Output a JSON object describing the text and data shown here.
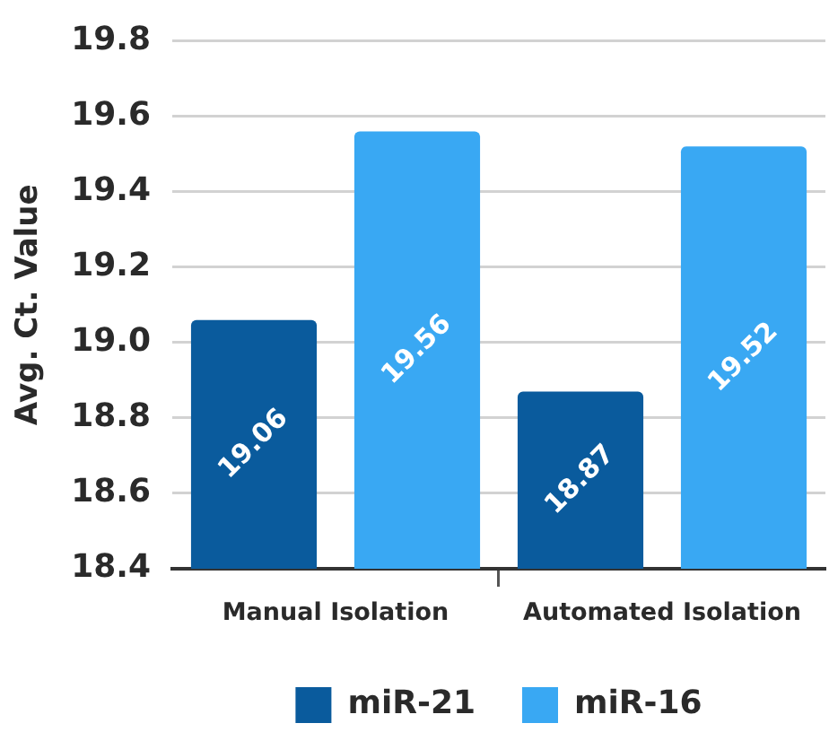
{
  "chart_data": {
    "type": "bar",
    "ylabel": "Avg. Ct. Value",
    "categories": [
      "Manual Isolation",
      "Automated Isolation"
    ],
    "series": [
      {
        "name": "miR-21",
        "color": "#0a5b9d",
        "values": [
          19.06,
          18.87
        ]
      },
      {
        "name": "miR-16",
        "color": "#39a8f3",
        "values": [
          19.56,
          19.52
        ]
      }
    ],
    "ylim": [
      18.4,
      19.8
    ],
    "yticks": [
      18.4,
      18.6,
      18.8,
      {
        "value": 19.0,
        "label": "19.0"
      },
      19.2,
      19.4,
      19.6,
      19.8
    ],
    "grid": "y",
    "legend": "bottom",
    "data_labels": true
  }
}
